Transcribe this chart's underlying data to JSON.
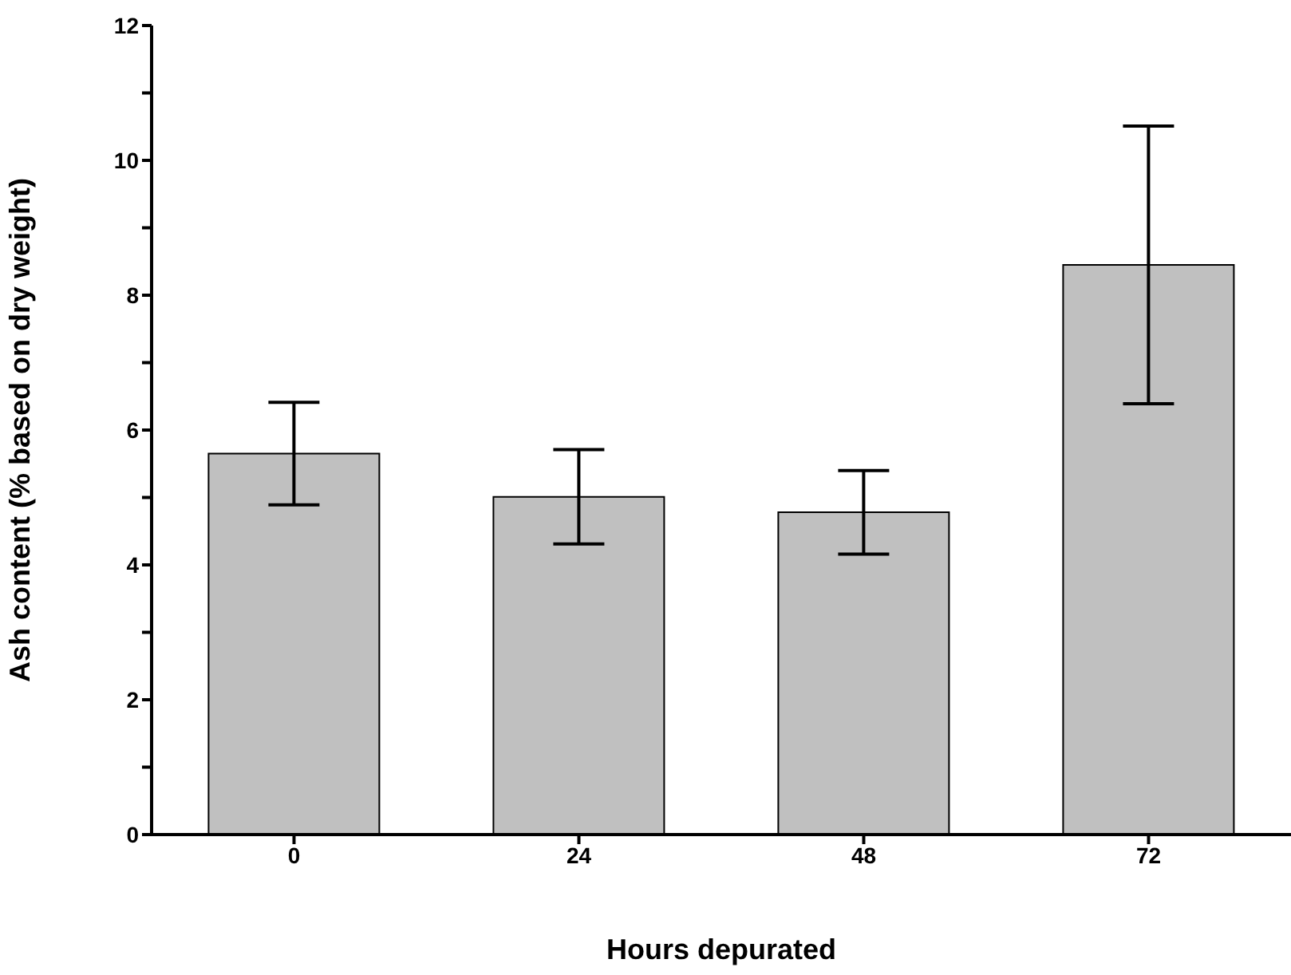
{
  "chart_data": {
    "type": "bar",
    "xlabel": "Hours depurated",
    "ylabel": "Ash content (% based on dry weight)",
    "categories": [
      "0",
      "24",
      "48",
      "72"
    ],
    "values": [
      5.65,
      5.01,
      4.78,
      8.45
    ],
    "errors": [
      0.76,
      0.7,
      0.62,
      2.06
    ],
    "color": "#c0c0c0",
    "ylim": [
      0,
      12
    ],
    "yticks": [
      0,
      {
        "value": 1,
        "label": null
      },
      2,
      {
        "value": 3,
        "label": null
      },
      4,
      {
        "value": 5,
        "label": null
      },
      6,
      {
        "value": 7,
        "label": null
      },
      8,
      {
        "value": 9,
        "label": null
      },
      10,
      {
        "value": 11,
        "label": null
      },
      12
    ]
  }
}
